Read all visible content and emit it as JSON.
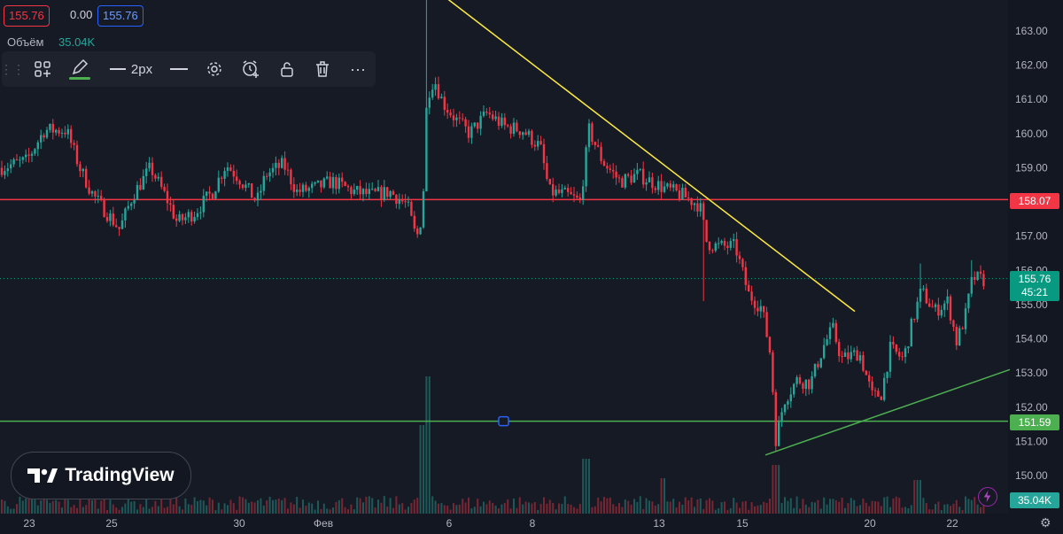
{
  "legend": {
    "open_value": "155.76",
    "change_value": "0.00",
    "close_value": "155.76",
    "volume_label": "Объём",
    "volume_value": "35.04K"
  },
  "toolbar": {
    "width_label": "2px",
    "items": [
      "layout-icon",
      "pencil-icon",
      "line-width-icon",
      "line-style-icon",
      "settings-icon",
      "alert-icon",
      "lock-icon",
      "trash-icon",
      "more-icon"
    ]
  },
  "brand": {
    "name": "TradingView"
  },
  "price_tags": {
    "red_line": "158.07",
    "green_line": "151.59",
    "current_price": "155.76",
    "countdown": "45:21",
    "volume": "35.04K"
  },
  "colors": {
    "background": "#161a25",
    "up": "#26a69a",
    "down": "#f23645",
    "trendline": "#ffeb3b",
    "support": "#4caf50",
    "resistance": "#f23645"
  },
  "chart_data": {
    "type": "candlestick",
    "y_axis": {
      "ylim": [
        149.7,
        164.6
      ],
      "ticks": [
        "150.00",
        "151.00",
        "152.00",
        "153.00",
        "154.00",
        "155.00",
        "156.00",
        "157.00",
        "158.00",
        "159.00",
        "160.00",
        "161.00",
        "162.00",
        "163.00"
      ]
    },
    "x_axis": {
      "ticks": [
        {
          "label": "23",
          "x": 33
        },
        {
          "label": "25",
          "x": 126
        },
        {
          "label": "30",
          "x": 270
        },
        {
          "label": "Фев",
          "x": 365
        },
        {
          "label": "6",
          "x": 507
        },
        {
          "label": "8",
          "x": 601
        },
        {
          "label": "13",
          "x": 744
        },
        {
          "label": "15",
          "x": 838
        },
        {
          "label": "20",
          "x": 982
        },
        {
          "label": "22",
          "x": 1075
        }
      ]
    },
    "horizontal_lines": [
      {
        "name": "resistance",
        "value": 158.07
      },
      {
        "name": "support",
        "value": 151.59
      }
    ],
    "trendlines": [
      {
        "name": "descending",
        "from": [
          482,
          164.4
        ],
        "to": [
          965,
          154.8
        ]
      },
      {
        "name": "ascending",
        "from": [
          864,
          150.6
        ],
        "to": [
          1140,
          153.1
        ]
      }
    ],
    "price_path": [
      [
        0,
        159.0
      ],
      [
        30,
        159.2
      ],
      [
        50,
        160.1
      ],
      [
        75,
        160.1
      ],
      [
        90,
        159.0
      ],
      [
        105,
        158.2
      ],
      [
        135,
        157.2
      ],
      [
        150,
        158.2
      ],
      [
        170,
        159.0
      ],
      [
        190,
        158.0
      ],
      [
        200,
        157.4
      ],
      [
        220,
        157.7
      ],
      [
        240,
        158.3
      ],
      [
        255,
        159.1
      ],
      [
        270,
        158.7
      ],
      [
        290,
        158.0
      ],
      [
        300,
        158.8
      ],
      [
        320,
        159.1
      ],
      [
        335,
        158.3
      ],
      [
        355,
        158.4
      ],
      [
        375,
        158.6
      ],
      [
        400,
        158.3
      ],
      [
        420,
        158.2
      ],
      [
        440,
        158.3
      ],
      [
        460,
        157.9
      ],
      [
        470,
        156.9
      ],
      [
        477,
        157.7
      ],
      [
        482,
        161.1
      ],
      [
        490,
        161.6
      ],
      [
        500,
        160.9
      ],
      [
        515,
        160.4
      ],
      [
        530,
        160.0
      ],
      [
        550,
        160.6
      ],
      [
        570,
        160.2
      ],
      [
        590,
        160.1
      ],
      [
        610,
        159.6
      ],
      [
        620,
        158.3
      ],
      [
        640,
        158.2
      ],
      [
        655,
        158.0
      ],
      [
        665,
        160.1
      ],
      [
        680,
        159.2
      ],
      [
        700,
        158.6
      ],
      [
        720,
        158.8
      ],
      [
        735,
        158.6
      ],
      [
        750,
        158.4
      ],
      [
        770,
        158.2
      ],
      [
        790,
        157.9
      ],
      [
        798,
        156.8
      ],
      [
        810,
        156.7
      ],
      [
        830,
        156.7
      ],
      [
        845,
        155.3
      ],
      [
        860,
        154.9
      ],
      [
        870,
        153.5
      ],
      [
        876,
        151.0
      ],
      [
        885,
        152.2
      ],
      [
        900,
        152.8
      ],
      [
        915,
        152.7
      ],
      [
        930,
        153.8
      ],
      [
        940,
        154.3
      ],
      [
        950,
        153.4
      ],
      [
        970,
        153.6
      ],
      [
        985,
        152.3
      ],
      [
        995,
        152.4
      ],
      [
        1005,
        153.7
      ],
      [
        1020,
        153.4
      ],
      [
        1030,
        154.5
      ],
      [
        1040,
        155.4
      ],
      [
        1055,
        154.8
      ],
      [
        1070,
        155.1
      ],
      [
        1080,
        153.9
      ],
      [
        1090,
        154.7
      ],
      [
        1098,
        155.8
      ],
      [
        1112,
        155.7
      ]
    ],
    "current_price": 155.76
  }
}
